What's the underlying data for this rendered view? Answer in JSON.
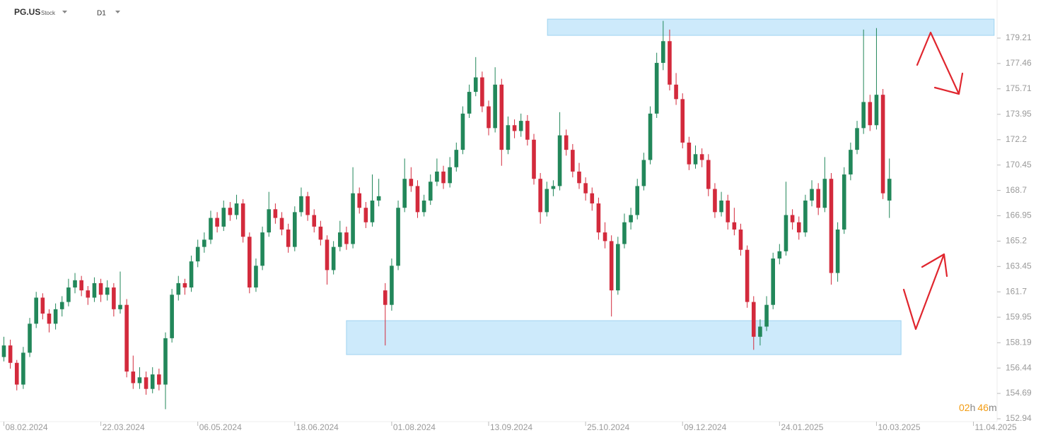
{
  "header": {
    "symbol": "PG.US",
    "kind": "Stock",
    "interval": "D1"
  },
  "countdown": {
    "hours": "02",
    "hours_unit": "h",
    "minutes": "46",
    "minutes_unit": "m"
  },
  "chart_data": {
    "type": "candlestick",
    "up_color": "#22875a",
    "down_color": "#d32a3c",
    "xlim": [
      -0.6,
      153.66
    ],
    "ylim": [
      152.84,
      181.84
    ],
    "xticks": [
      {
        "value": 0,
        "label": "08.02.2024"
      },
      {
        "value": 15,
        "label": "22.03.2024"
      },
      {
        "value": 30,
        "label": "06.05.2024"
      },
      {
        "value": 45,
        "label": "18.06.2024"
      },
      {
        "value": 60,
        "label": "01.08.2024"
      },
      {
        "value": 75,
        "label": "13.09.2024"
      },
      {
        "value": 90,
        "label": "25.10.2024"
      },
      {
        "value": 105,
        "label": "09.12.2024"
      },
      {
        "value": 120,
        "label": "24.01.2025"
      },
      {
        "value": 135,
        "label": "10.03.2025"
      },
      {
        "value": 150,
        "label": "11.04.2025"
      }
    ],
    "yticks": [
      152.94,
      154.69,
      156.44,
      158.19,
      159.95,
      161.7,
      163.45,
      165.2,
      166.95,
      168.7,
      170.45,
      172.2,
      173.95,
      175.71,
      177.46,
      179.21
    ],
    "zones": [
      {
        "x": [
          84.1,
          153.2
        ],
        "y": [
          179.4,
          180.52
        ],
        "color": "#cdeafb"
      },
      {
        "x": [
          53.0,
          138.8
        ],
        "y": [
          157.37,
          159.71
        ],
        "color": "#cdeafb"
      }
    ],
    "candles": [
      [
        157.2,
        158.6,
        156.9,
        158.0
      ],
      [
        158.0,
        158.4,
        156.4,
        156.8
      ],
      [
        156.8,
        157.0,
        154.9,
        155.3
      ],
      [
        155.3,
        157.9,
        155.0,
        157.5
      ],
      [
        157.5,
        159.9,
        157.2,
        159.5
      ],
      [
        159.5,
        161.7,
        159.2,
        161.3
      ],
      [
        161.3,
        161.6,
        159.8,
        160.2
      ],
      [
        160.2,
        160.5,
        158.9,
        159.5
      ],
      [
        159.5,
        160.9,
        159.1,
        160.5
      ],
      [
        160.5,
        161.4,
        160.0,
        161.0
      ],
      [
        161.0,
        162.6,
        160.7,
        162.0
      ],
      [
        162.0,
        163.0,
        161.6,
        162.5
      ],
      [
        162.5,
        162.8,
        161.4,
        161.8
      ],
      [
        161.8,
        162.1,
        160.8,
        161.3
      ],
      [
        161.3,
        162.7,
        161.0,
        162.3
      ],
      [
        162.3,
        162.6,
        161.0,
        161.5
      ],
      [
        161.5,
        162.5,
        161.1,
        162.0
      ],
      [
        162.0,
        162.3,
        160.0,
        160.5
      ],
      [
        160.5,
        163.1,
        160.2,
        160.8
      ],
      [
        160.8,
        161.2,
        155.8,
        156.2
      ],
      [
        156.2,
        157.3,
        155.0,
        155.4
      ],
      [
        155.4,
        156.5,
        155.0,
        155.8
      ],
      [
        155.8,
        156.2,
        154.6,
        155.0
      ],
      [
        155.0,
        156.5,
        154.7,
        156.0
      ],
      [
        156.0,
        156.4,
        154.9,
        155.3
      ],
      [
        155.3,
        158.9,
        153.6,
        158.5
      ],
      [
        158.5,
        161.9,
        158.2,
        161.5
      ],
      [
        161.5,
        162.8,
        161.1,
        162.3
      ],
      [
        162.3,
        162.6,
        161.5,
        162.0
      ],
      [
        162.0,
        164.2,
        161.7,
        163.8
      ],
      [
        163.8,
        165.3,
        163.4,
        164.8
      ],
      [
        164.8,
        165.8,
        164.4,
        165.3
      ],
      [
        165.3,
        167.3,
        165.0,
        166.8
      ],
      [
        166.8,
        167.2,
        165.8,
        166.2
      ],
      [
        166.2,
        168.0,
        165.9,
        167.5
      ],
      [
        167.5,
        167.9,
        166.6,
        167.0
      ],
      [
        167.0,
        168.4,
        166.7,
        167.8
      ],
      [
        167.8,
        168.1,
        165.1,
        165.5
      ],
      [
        165.5,
        165.8,
        161.6,
        162.0
      ],
      [
        162.0,
        164.0,
        161.7,
        163.5
      ],
      [
        163.5,
        166.2,
        163.2,
        165.8
      ],
      [
        165.8,
        168.6,
        165.5,
        167.4
      ],
      [
        167.4,
        167.8,
        166.4,
        166.8
      ],
      [
        166.8,
        167.2,
        165.6,
        166.0
      ],
      [
        166.0,
        166.4,
        164.4,
        164.8
      ],
      [
        164.8,
        167.6,
        164.5,
        167.2
      ],
      [
        167.2,
        168.9,
        166.9,
        168.3
      ],
      [
        168.3,
        168.6,
        166.6,
        167.0
      ],
      [
        167.0,
        167.4,
        165.8,
        166.2
      ],
      [
        166.2,
        166.6,
        164.9,
        165.3
      ],
      [
        165.3,
        165.6,
        162.2,
        163.2
      ],
      [
        163.2,
        165.2,
        162.9,
        164.8
      ],
      [
        164.8,
        166.6,
        164.5,
        165.8
      ],
      [
        165.8,
        166.2,
        164.6,
        165.0
      ],
      [
        165.0,
        170.3,
        164.7,
        168.5
      ],
      [
        168.5,
        168.9,
        167.1,
        167.5
      ],
      [
        167.5,
        167.9,
        166.1,
        166.5
      ],
      [
        166.5,
        169.8,
        166.2,
        168.0
      ],
      [
        168.0,
        169.5,
        167.6,
        168.3
      ],
      [
        161.8,
        162.3,
        158.0,
        160.8
      ],
      [
        160.8,
        164.0,
        160.4,
        163.5
      ],
      [
        163.5,
        168.0,
        163.2,
        167.5
      ],
      [
        167.5,
        170.9,
        167.2,
        169.5
      ],
      [
        169.5,
        170.3,
        168.6,
        169.0
      ],
      [
        169.0,
        169.4,
        166.8,
        167.2
      ],
      [
        167.2,
        168.4,
        166.9,
        168.0
      ],
      [
        168.0,
        169.8,
        167.7,
        169.3
      ],
      [
        169.3,
        170.9,
        169.0,
        170.0
      ],
      [
        170.0,
        170.4,
        168.8,
        169.2
      ],
      [
        169.2,
        171.0,
        168.9,
        170.3
      ],
      [
        170.3,
        172.0,
        170.0,
        171.5
      ],
      [
        171.5,
        174.5,
        171.2,
        174.0
      ],
      [
        174.0,
        176.0,
        173.7,
        175.5
      ],
      [
        175.5,
        177.9,
        175.2,
        176.5
      ],
      [
        176.5,
        176.9,
        174.1,
        174.5
      ],
      [
        174.5,
        174.9,
        172.5,
        173.0
      ],
      [
        173.0,
        177.2,
        172.7,
        176.0
      ],
      [
        176.0,
        176.4,
        170.4,
        171.5
      ],
      [
        171.5,
        173.8,
        171.2,
        173.2
      ],
      [
        173.2,
        173.6,
        172.3,
        172.8
      ],
      [
        172.8,
        174.0,
        172.4,
        173.5
      ],
      [
        173.5,
        173.9,
        171.8,
        172.2
      ],
      [
        172.2,
        172.6,
        169.1,
        169.5
      ],
      [
        169.5,
        169.9,
        166.4,
        167.2
      ],
      [
        167.2,
        169.3,
        166.9,
        168.8
      ],
      [
        168.8,
        169.4,
        168.3,
        169.0
      ],
      [
        169.0,
        174.1,
        168.7,
        172.5
      ],
      [
        172.5,
        172.9,
        171.1,
        171.5
      ],
      [
        171.5,
        171.9,
        169.6,
        170.0
      ],
      [
        170.0,
        170.6,
        168.8,
        169.2
      ],
      [
        169.2,
        169.6,
        168.0,
        168.5
      ],
      [
        168.5,
        168.9,
        167.3,
        167.8
      ],
      [
        167.8,
        168.2,
        165.3,
        165.8
      ],
      [
        165.8,
        166.5,
        164.7,
        165.2
      ],
      [
        165.2,
        165.6,
        160.0,
        161.8
      ],
      [
        161.8,
        165.5,
        161.5,
        165.0
      ],
      [
        165.0,
        167.1,
        164.7,
        166.5
      ],
      [
        166.5,
        167.5,
        166.0,
        167.0
      ],
      [
        167.0,
        169.5,
        166.7,
        169.0
      ],
      [
        169.0,
        171.3,
        168.7,
        170.8
      ],
      [
        170.8,
        174.5,
        170.5,
        174.0
      ],
      [
        174.0,
        178.2,
        173.7,
        177.5
      ],
      [
        177.5,
        180.4,
        177.0,
        179.0
      ],
      [
        179.0,
        179.8,
        175.6,
        176.0
      ],
      [
        176.0,
        176.8,
        174.6,
        175.0
      ],
      [
        175.0,
        175.4,
        171.6,
        172.0
      ],
      [
        172.0,
        172.4,
        170.1,
        170.5
      ],
      [
        170.5,
        171.8,
        170.2,
        171.2
      ],
      [
        171.2,
        171.6,
        170.3,
        170.8
      ],
      [
        170.8,
        171.2,
        168.3,
        168.8
      ],
      [
        168.8,
        169.2,
        166.8,
        167.2
      ],
      [
        167.2,
        168.6,
        166.9,
        168.0
      ],
      [
        168.0,
        168.4,
        166.0,
        166.5
      ],
      [
        166.5,
        167.5,
        165.6,
        166.0
      ],
      [
        166.0,
        166.4,
        164.2,
        164.6
      ],
      [
        164.6,
        164.9,
        160.6,
        161.0
      ],
      [
        161.0,
        161.4,
        157.7,
        158.6
      ],
      [
        158.6,
        159.8,
        158.0,
        159.3
      ],
      [
        159.3,
        161.4,
        159.0,
        160.8
      ],
      [
        160.8,
        164.4,
        160.5,
        164.0
      ],
      [
        164.0,
        165.0,
        163.6,
        164.5
      ],
      [
        164.5,
        169.3,
        164.2,
        167.0
      ],
      [
        167.0,
        167.4,
        166.0,
        166.5
      ],
      [
        166.5,
        166.9,
        165.3,
        165.8
      ],
      [
        165.8,
        168.4,
        165.5,
        168.0
      ],
      [
        168.0,
        169.4,
        167.6,
        168.8
      ],
      [
        168.8,
        169.2,
        167.0,
        167.5
      ],
      [
        167.5,
        171.0,
        167.2,
        169.5
      ],
      [
        169.5,
        169.9,
        162.2,
        163.0
      ],
      [
        163.0,
        166.5,
        162.4,
        166.0
      ],
      [
        166.0,
        170.3,
        165.7,
        169.8
      ],
      [
        169.8,
        172.0,
        169.4,
        171.5
      ],
      [
        171.5,
        173.5,
        171.2,
        173.0
      ],
      [
        173.0,
        179.8,
        172.6,
        174.8
      ],
      [
        174.8,
        175.3,
        172.8,
        173.2
      ],
      [
        173.2,
        179.9,
        172.9,
        175.3
      ],
      [
        175.3,
        175.7,
        168.1,
        168.5
      ],
      [
        168.0,
        170.9,
        166.8,
        169.5
      ]
    ]
  }
}
